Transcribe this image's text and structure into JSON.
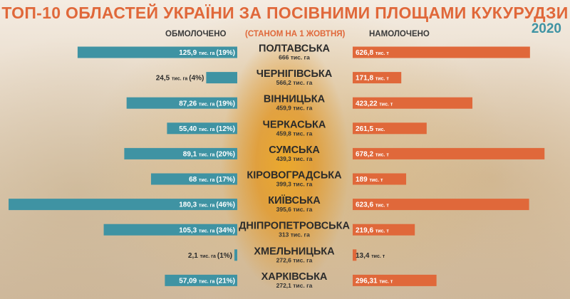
{
  "title": "ТОП-10 ОБЛАСТЕЙ УКРАЇНИ ЗА ПОСІВНИМИ ПЛОЩАМИ КУКУРУДЗИ",
  "year": "2020",
  "headers": {
    "threshed": "ОБМОЛОЧЕНО",
    "as_of": "(СТАНОМ НА 1 ЖОВТНЯ)",
    "harvested": "НАМОЛОЧЕНО"
  },
  "colors": {
    "left_bar": "#3f93a3",
    "right_bar": "#e0683a",
    "title": "#e0683a"
  },
  "chart_data": {
    "type": "bar",
    "categories": [
      "ПОЛТАВСЬКА",
      "ЧЕРНІГІВСЬКА",
      "ВІННИЦЬКА",
      "ЧЕРКАСЬКА",
      "СУМСЬКА",
      "КІРОВОГРАДСЬКА",
      "КИЇВСЬКА",
      "ДНІПРОПЕТРОВСЬКА",
      "ХМЕЛЬНИЦЬКА",
      "ХАРКІВСЬКА"
    ],
    "sown_area_labels": [
      "666 тис. га",
      "566,2 тис. га",
      "459,9 тис. га",
      "459,8 тис. га",
      "439,3 тис. га",
      "399,3 тис. га",
      "395,6 тис. га",
      "313 тис. га",
      "272,6 тис. га",
      "272,1 тис. га"
    ],
    "series": [
      {
        "name": "ОБМОЛОЧЕНО",
        "values": [
          125.9,
          24.5,
          87.26,
          55.4,
          89.1,
          68,
          180.3,
          105.3,
          2.1,
          57.09
        ],
        "percent": [
          19,
          4,
          19,
          12,
          20,
          17,
          46,
          34,
          1,
          21
        ],
        "labels": [
          "125,9",
          "24,5",
          "87,26",
          "55,40",
          "89,1",
          "68",
          "180,3",
          "105,3",
          "2,1",
          "57,09"
        ],
        "label_units": [
          "тис. га",
          "тис. га",
          "тис. га",
          "тис. га",
          "тис. га",
          "тис. га",
          "тис. га",
          "тис. га",
          "тис. га",
          "тис. га"
        ],
        "percent_labels": [
          "(19%)",
          "(4%)",
          "(19%)",
          "(12%)",
          "(20%)",
          "(17%)",
          "(46%)",
          "(34%)",
          "(1%)",
          "(21%)"
        ]
      },
      {
        "name": "НАМОЛОЧЕНО",
        "values": [
          626.8,
          171.8,
          423.22,
          261.5,
          678.2,
          189,
          623.6,
          219.6,
          13.4,
          296.31
        ],
        "labels": [
          "626,8",
          "171,8",
          "423,22",
          "261,5",
          "678,2",
          "189",
          "623,6",
          "219,6",
          "13,4",
          "296,31"
        ],
        "label_units": [
          "тис. т",
          "тис. т",
          "тис. т",
          "тис.",
          "тис. т",
          "тис. т",
          "тис. т",
          "тис. т",
          "тис. т",
          "тис. т"
        ]
      }
    ]
  }
}
